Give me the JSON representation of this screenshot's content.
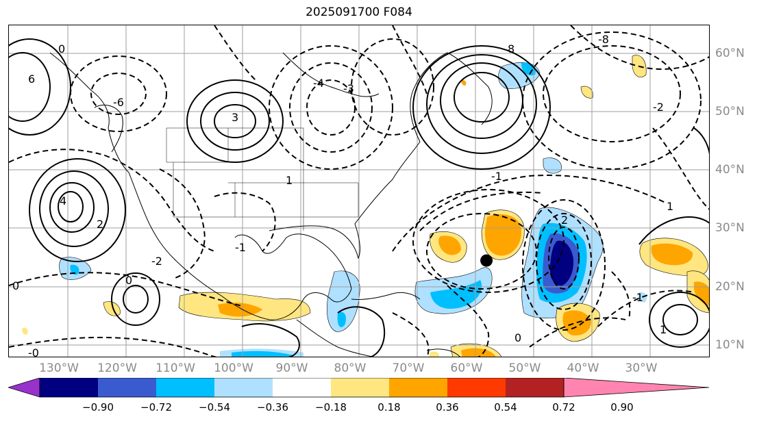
{
  "title": "2025091700 F084",
  "lon_labels": [
    "130°W",
    "120°W",
    "110°W",
    "100°W",
    "90°W",
    "80°W",
    "70°W",
    "60°W",
    "50°W",
    "40°W",
    "30°W"
  ],
  "lat_labels": [
    "60°N",
    "50°N",
    "40°N",
    "30°N",
    "20°N",
    "10°N"
  ],
  "colorbar": {
    "ticks": [
      "−0.90",
      "−0.72",
      "−0.54",
      "−0.36",
      "−0.18",
      "0.18",
      "0.36",
      "0.54",
      "0.72",
      "0.90"
    ],
    "colors": [
      "#9932cc",
      "#000080",
      "#3a5bd0",
      "#00bfff",
      "#b0e0ff",
      "#ffffff",
      "#ffe680",
      "#ffa500",
      "#ff3a00",
      "#b22222",
      "#ff85b0"
    ]
  },
  "contour_labels": [
    {
      "text": "6"
    },
    {
      "text": "-6"
    },
    {
      "text": "0"
    },
    {
      "text": "1"
    },
    {
      "text": "-1"
    },
    {
      "text": "2"
    },
    {
      "text": "-2"
    },
    {
      "text": "3"
    },
    {
      "text": "-3"
    },
    {
      "text": "4"
    },
    {
      "text": "-4"
    },
    {
      "text": "8"
    },
    {
      "text": "-8"
    },
    {
      "text": "0"
    },
    {
      "text": "-1"
    },
    {
      "text": "2"
    },
    {
      "text": "0"
    },
    {
      "text": "-2"
    },
    {
      "text": "1"
    },
    {
      "text": "-1"
    },
    {
      "text": "0"
    },
    {
      "text": "-0"
    },
    {
      "text": "1"
    }
  ],
  "storm_marker": {
    "lon": -57,
    "lat": 24.7
  }
}
